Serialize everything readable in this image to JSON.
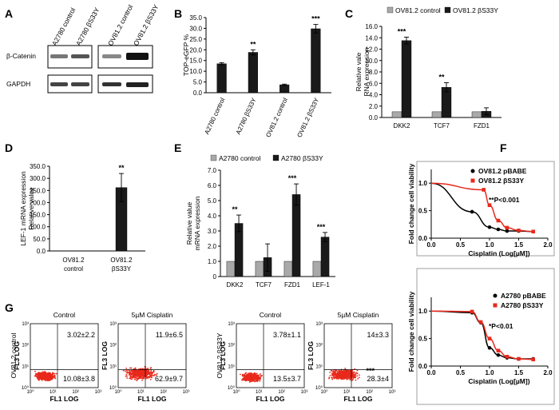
{
  "panel_labels": [
    "A",
    "B",
    "C",
    "D",
    "E",
    "F",
    "G"
  ],
  "panel_a": {
    "lanes": [
      "A2780 control",
      "A2780 βS33Y",
      "OV81.2 control",
      "OV81.2 βS33Y"
    ],
    "rows": [
      "β-Catenin",
      "GAPDH"
    ]
  },
  "chart_data": [
    {
      "id": "B",
      "type": "bar",
      "categories": [
        "A2780 control",
        "A2780 βS33Y",
        "OV81.2 control",
        "OV81.2 βS33Y"
      ],
      "values": [
        13.5,
        18.8,
        3.7,
        29.8
      ],
      "errors": [
        0.5,
        1.2,
        0.3,
        2.0
      ],
      "significance": [
        "",
        "**",
        "",
        "***"
      ],
      "ylabel": "TOP-eGFP %",
      "ylim": [
        0,
        35
      ],
      "yticks": [
        "0.0",
        "5.0",
        "10.0",
        "15.0",
        "20.0",
        "25.0",
        "30.0",
        "35.0"
      ]
    },
    {
      "id": "C",
      "type": "bar",
      "categories": [
        "DKK2",
        "TCF7",
        "FZD1"
      ],
      "series": [
        {
          "name": "OV81.2 control",
          "values": [
            1.0,
            1.0,
            1.0
          ],
          "errors": [
            0,
            0,
            0
          ]
        },
        {
          "name": "OV81.2 βS33Y",
          "values": [
            13.5,
            5.3,
            1.1
          ],
          "errors": [
            0.6,
            0.8,
            0.6
          ]
        }
      ],
      "significance": [
        "***",
        "**",
        ""
      ],
      "ylabel": "Relative vale mRNA expression",
      "ylim": [
        0,
        16
      ],
      "yticks": [
        "0.0",
        "2.0",
        "4.0",
        "6.0",
        "8.0",
        "10.0",
        "12.0",
        "14.0",
        "16.0"
      ]
    },
    {
      "id": "D",
      "type": "bar",
      "categories": [
        "OV81.2 control",
        "OV81.2 βS33Y"
      ],
      "values": [
        1.0,
        262
      ],
      "errors": [
        0,
        58
      ],
      "significance": [
        "",
        "**"
      ],
      "ylabel": "LEF-1 mRNA expression Relative value",
      "ylim": [
        0,
        350
      ],
      "yticks": [
        "0.0",
        "50.0",
        "100.0",
        "150.0",
        "200.0",
        "250.0",
        "300.0",
        "350.0"
      ]
    },
    {
      "id": "E",
      "type": "bar",
      "categories": [
        "DKK2",
        "TCF7",
        "FZD1",
        "LEF-1"
      ],
      "series": [
        {
          "name": "A2780 control",
          "values": [
            1.0,
            1.0,
            1.0,
            1.0
          ],
          "errors": [
            0,
            0,
            0,
            0
          ]
        },
        {
          "name": "A2780 βS33Y",
          "values": [
            3.5,
            1.25,
            5.4,
            2.6
          ],
          "errors": [
            0.55,
            0.9,
            0.7,
            0.3
          ]
        }
      ],
      "significance": [
        "**",
        "",
        "***",
        "***"
      ],
      "ylabel": "Relative value mRNA expression",
      "ylim": [
        0,
        7
      ],
      "yticks": [
        "0",
        "1.0",
        "2.0",
        "3.0",
        "4.0",
        "5.0",
        "6.0",
        "7.0"
      ]
    },
    {
      "id": "F1",
      "type": "line",
      "xlabel": "Cisplatin (Log[µM])",
      "ylabel": "Fold change cell viability",
      "xlim": [
        0,
        2
      ],
      "ylim": [
        0,
        1.25
      ],
      "xticks": [
        "0.0",
        "0.5",
        "1.0",
        "1.5",
        "2.0"
      ],
      "yticks": [
        "0.0",
        "0.5",
        "1.0"
      ],
      "annotation": "**P<0.001",
      "series": [
        {
          "name": "OV81.2 pBABE",
          "color": "#000000",
          "x": [
            0.7,
            1.0,
            1.15,
            1.3,
            1.5,
            1.75
          ],
          "y": [
            0.48,
            0.2,
            0.16,
            0.13,
            0.13,
            0.12
          ]
        },
        {
          "name": "OV81.2 βS33Y",
          "color": "#e8291c",
          "x": [
            0.9,
            1.0,
            1.15,
            1.3,
            1.5,
            1.75
          ],
          "y": [
            0.88,
            0.6,
            0.32,
            0.19,
            0.14,
            0.12
          ]
        }
      ]
    },
    {
      "id": "F2",
      "type": "line",
      "xlabel": "Cisplatin (Log[µM])",
      "ylabel": "Fold change cell viability",
      "xlim": [
        0,
        2
      ],
      "ylim": [
        0,
        1.25
      ],
      "xticks": [
        "0.0",
        "0.5",
        "1.0",
        "1.5",
        "2.0"
      ],
      "yticks": [
        "0.0",
        "0.5",
        "1.0"
      ],
      "annotation": "*P<0.01",
      "series": [
        {
          "name": "A2780 pBABE",
          "color": "#000000",
          "x": [
            0.7,
            0.85,
            1.0,
            1.15,
            1.3,
            1.5,
            1.75
          ],
          "y": [
            0.97,
            0.79,
            0.33,
            0.2,
            0.15,
            0.13,
            0.13
          ]
        },
        {
          "name": "A2780 βS33Y",
          "color": "#e8291c",
          "x": [
            0.7,
            0.85,
            1.0,
            1.15,
            1.3,
            1.5,
            1.75
          ],
          "y": [
            0.99,
            0.8,
            0.5,
            0.28,
            0.17,
            0.13,
            0.12
          ]
        }
      ]
    }
  ],
  "panel_g": {
    "rowlabels": [
      "OV81.2 control",
      "OV81.2 βS33Y"
    ],
    "plots": [
      {
        "title": "Control",
        "upper": "3.02±2.2",
        "lower": "10.08±3.8",
        "sig": ""
      },
      {
        "title": "5µM Cisplatin",
        "upper": "11.9±6.5",
        "lower": "62.9±9.7",
        "sig": ""
      },
      {
        "title": "Control",
        "upper": "3.78±1.1",
        "lower": "13.5±3.7",
        "sig": ""
      },
      {
        "title": "5µM Cisplatin",
        "upper": "14±3.3",
        "lower": "28.3±4",
        "sig": "***"
      }
    ],
    "xlabel": "FL1 LOG",
    "ylabel": "FL3 LOG",
    "ticks": [
      "10⁰",
      "10¹",
      "10²",
      "10³"
    ]
  },
  "colors": {
    "control": "#a9a9a9",
    "mutant": "#1a1a1a",
    "dots": "#e8291c"
  }
}
